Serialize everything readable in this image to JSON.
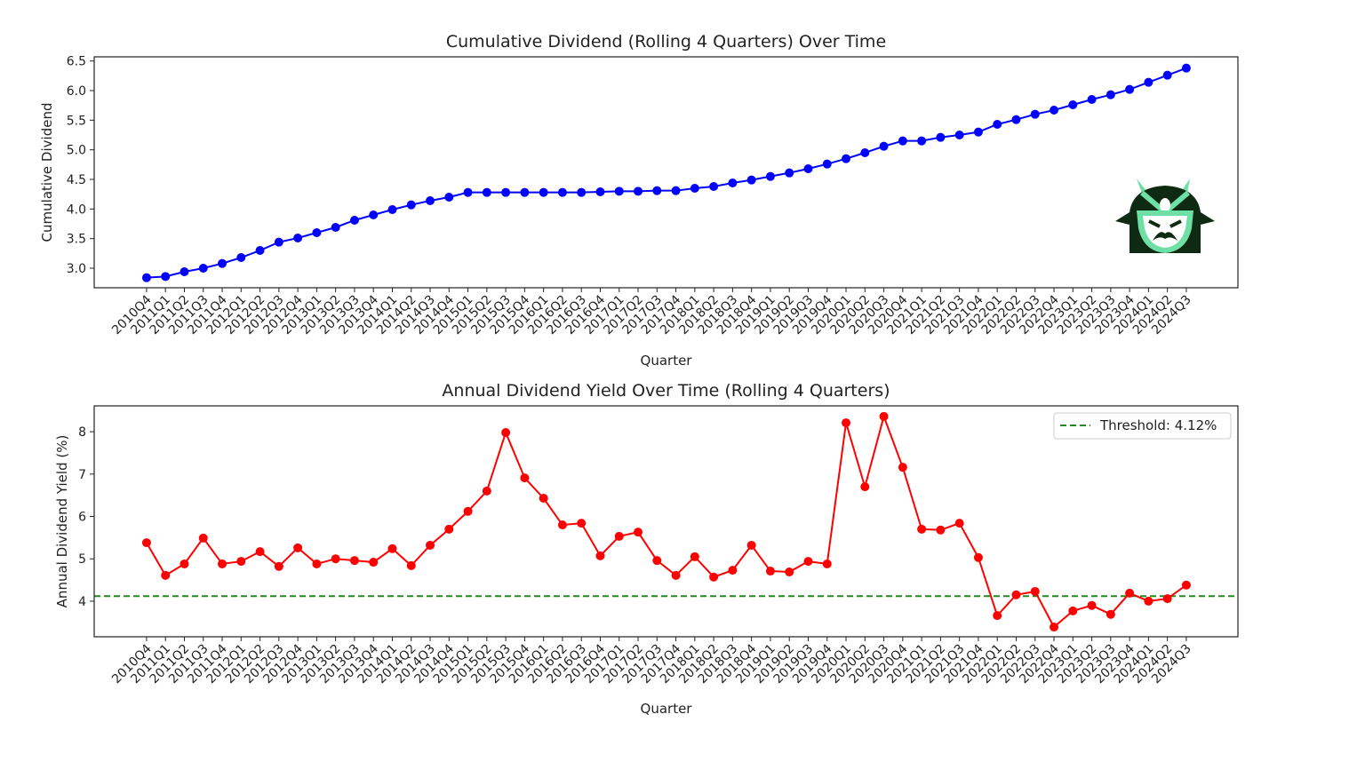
{
  "chart_data": [
    {
      "type": "line",
      "title": "Cumulative Dividend (Rolling 4 Quarters) Over Time",
      "xlabel": "Quarter",
      "ylabel": "Cumulative Dividend",
      "ylim": [
        2.67,
        6.57
      ],
      "yticks": [
        "3.0",
        "3.5",
        "4.0",
        "4.5",
        "5.0",
        "5.5",
        "6.0",
        "6.5"
      ],
      "grid": false,
      "color": "#0000ff",
      "categories": [
        "2010Q4",
        "2011Q1",
        "2011Q2",
        "2011Q3",
        "2011Q4",
        "2012Q1",
        "2012Q2",
        "2012Q3",
        "2012Q4",
        "2013Q1",
        "2013Q2",
        "2013Q3",
        "2013Q4",
        "2014Q1",
        "2014Q2",
        "2014Q3",
        "2014Q4",
        "2015Q1",
        "2015Q2",
        "2015Q3",
        "2015Q4",
        "2016Q1",
        "2016Q2",
        "2016Q3",
        "2016Q4",
        "2017Q1",
        "2017Q2",
        "2017Q3",
        "2017Q4",
        "2018Q1",
        "2018Q2",
        "2018Q3",
        "2018Q4",
        "2019Q1",
        "2019Q2",
        "2019Q3",
        "2019Q4",
        "2020Q1",
        "2020Q2",
        "2020Q3",
        "2020Q4",
        "2021Q1",
        "2021Q2",
        "2021Q3",
        "2021Q4",
        "2022Q1",
        "2022Q2",
        "2022Q3",
        "2022Q4",
        "2023Q1",
        "2023Q2",
        "2023Q3",
        "2023Q4",
        "2024Q1",
        "2024Q2",
        "2024Q3"
      ],
      "values": [
        2.84,
        2.86,
        2.94,
        3.0,
        3.08,
        3.18,
        3.3,
        3.44,
        3.51,
        3.6,
        3.69,
        3.81,
        3.9,
        3.99,
        4.07,
        4.14,
        4.2,
        4.28,
        4.28,
        4.28,
        4.28,
        4.28,
        4.28,
        4.28,
        4.29,
        4.3,
        4.3,
        4.31,
        4.31,
        4.35,
        4.38,
        4.44,
        4.49,
        4.55,
        4.61,
        4.68,
        4.76,
        4.85,
        4.95,
        5.06,
        5.15,
        5.15,
        5.21,
        5.25,
        5.3,
        5.43,
        5.51,
        5.6,
        5.67,
        5.76,
        5.85,
        5.93,
        6.02,
        6.14,
        6.26,
        6.38
      ]
    },
    {
      "type": "line",
      "title": "Annual Dividend Yield Over Time (Rolling 4 Quarters)",
      "xlabel": "Quarter",
      "ylabel": "Annual Dividend Yield (%)",
      "ylim": [
        3.16,
        8.61
      ],
      "yticks": [
        "4",
        "5",
        "6",
        "7",
        "8"
      ],
      "grid": false,
      "color": "#ff0000",
      "threshold": {
        "value": 4.12,
        "label": "Threshold: 4.12%",
        "color": "#228b22"
      },
      "legend": "top-right",
      "categories": [
        "2010Q4",
        "2011Q1",
        "2011Q2",
        "2011Q3",
        "2011Q4",
        "2012Q1",
        "2012Q2",
        "2012Q3",
        "2012Q4",
        "2013Q1",
        "2013Q2",
        "2013Q3",
        "2013Q4",
        "2014Q1",
        "2014Q2",
        "2014Q3",
        "2014Q4",
        "2015Q1",
        "2015Q2",
        "2015Q3",
        "2015Q4",
        "2016Q1",
        "2016Q2",
        "2016Q3",
        "2016Q4",
        "2017Q1",
        "2017Q2",
        "2017Q3",
        "2017Q4",
        "2018Q1",
        "2018Q2",
        "2018Q3",
        "2018Q4",
        "2019Q1",
        "2019Q2",
        "2019Q3",
        "2019Q4",
        "2020Q1",
        "2020Q2",
        "2020Q3",
        "2020Q4",
        "2021Q1",
        "2021Q2",
        "2021Q3",
        "2021Q4",
        "2022Q1",
        "2022Q2",
        "2022Q3",
        "2022Q4",
        "2023Q1",
        "2023Q2",
        "2023Q3",
        "2023Q4",
        "2024Q1",
        "2024Q2",
        "2024Q3"
      ],
      "values": [
        5.38,
        4.61,
        4.88,
        5.49,
        4.88,
        4.94,
        5.17,
        4.82,
        5.26,
        4.88,
        5.0,
        4.96,
        4.92,
        5.24,
        4.84,
        5.32,
        5.7,
        6.12,
        6.6,
        7.98,
        6.91,
        6.43,
        5.8,
        5.84,
        5.07,
        5.53,
        5.63,
        4.96,
        4.61,
        5.05,
        4.57,
        4.73,
        5.32,
        4.71,
        4.69,
        4.94,
        4.88,
        8.21,
        6.7,
        8.36,
        7.16,
        5.7,
        5.68,
        5.84,
        5.03,
        3.66,
        4.15,
        4.23,
        3.39,
        3.77,
        3.9,
        3.69,
        4.19,
        4.0,
        4.06,
        4.38
      ]
    }
  ],
  "logo": {
    "icon": "samurai-helmet-icon",
    "colors": [
      "#0f2a12",
      "#6ee0a6"
    ]
  }
}
